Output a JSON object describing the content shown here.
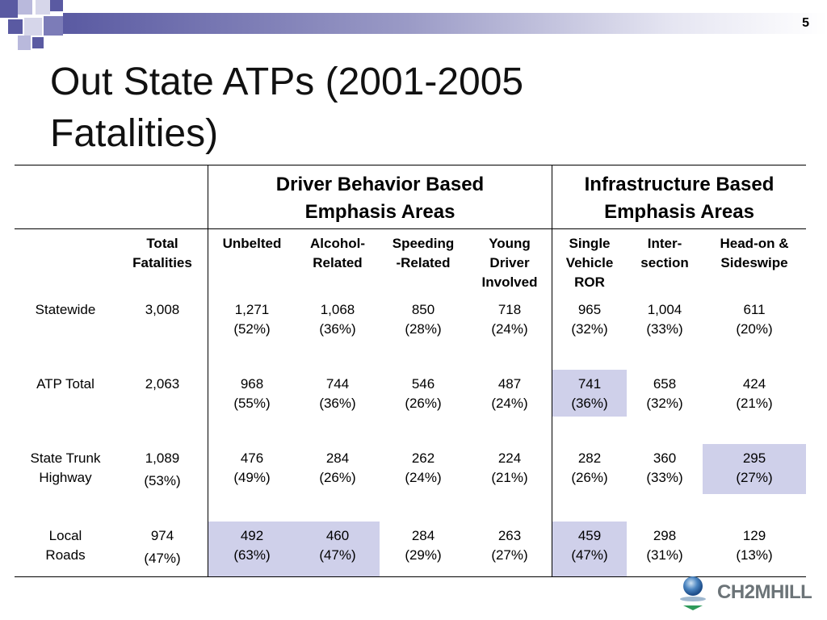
{
  "page_number": "5",
  "title_lines": [
    "Out State ATPs (2001-2005",
    "Fatalities)"
  ],
  "group_headers": {
    "driver": [
      "Driver Behavior Based",
      "Emphasis Areas"
    ],
    "infrastructure": [
      "Infrastructure Based",
      "Emphasis Areas"
    ]
  },
  "columns": [
    [
      "Total",
      "Fatalities"
    ],
    [
      "Unbelted"
    ],
    [
      "Alcohol-",
      "Related"
    ],
    [
      "Speeding",
      "-Related"
    ],
    [
      "Young",
      "Driver",
      "Involved"
    ],
    [
      "Single",
      "Vehicle",
      "ROR"
    ],
    [
      "Inter-",
      "section"
    ],
    [
      "Head-on &",
      "Sideswipe"
    ]
  ],
  "rows": [
    {
      "label": [
        "Statewide"
      ],
      "cells": [
        [
          "3,008"
        ],
        [
          "1,271",
          "(52%)"
        ],
        [
          "1,068",
          "(36%)"
        ],
        [
          "850",
          "(28%)"
        ],
        [
          "718",
          "(24%)"
        ],
        [
          "965",
          "(32%)"
        ],
        [
          "1,004",
          "(33%)"
        ],
        [
          "611",
          "(20%)"
        ]
      ]
    },
    {
      "label": [
        "ATP Total"
      ],
      "cells": [
        [
          "2,063"
        ],
        [
          "968",
          "(55%)"
        ],
        [
          "744",
          "(36%)"
        ],
        [
          "546",
          "(26%)"
        ],
        [
          "487",
          "(24%)"
        ],
        [
          "741",
          "(36%)"
        ],
        [
          "658",
          "(32%)"
        ],
        [
          "424",
          "(21%)"
        ]
      ]
    },
    {
      "label": [
        "State Trunk",
        "Highway"
      ],
      "cells": [
        [
          "1,089",
          "(53%)"
        ],
        [
          "476",
          "(49%)"
        ],
        [
          "284",
          "(26%)"
        ],
        [
          "262",
          "(24%)"
        ],
        [
          "224",
          "(21%)"
        ],
        [
          "282",
          "(26%)"
        ],
        [
          "360",
          "(33%)"
        ],
        [
          "295",
          "(27%)"
        ]
      ]
    },
    {
      "label": [
        "Local",
        "Roads"
      ],
      "cells": [
        [
          "974",
          "(47%)"
        ],
        [
          "492",
          "(63%)"
        ],
        [
          "460",
          "(47%)"
        ],
        [
          "284",
          "(29%)"
        ],
        [
          "263",
          "(27%)"
        ],
        [
          "459",
          "(47%)"
        ],
        [
          "298",
          "(31%)"
        ],
        [
          "129",
          "(13%)"
        ]
      ]
    }
  ],
  "logo_text": "CH2MHILL",
  "colors": {
    "highlight": "#cfd0ea",
    "bar_dark": "#5a5aa2",
    "logo_text": "#6c7478"
  }
}
